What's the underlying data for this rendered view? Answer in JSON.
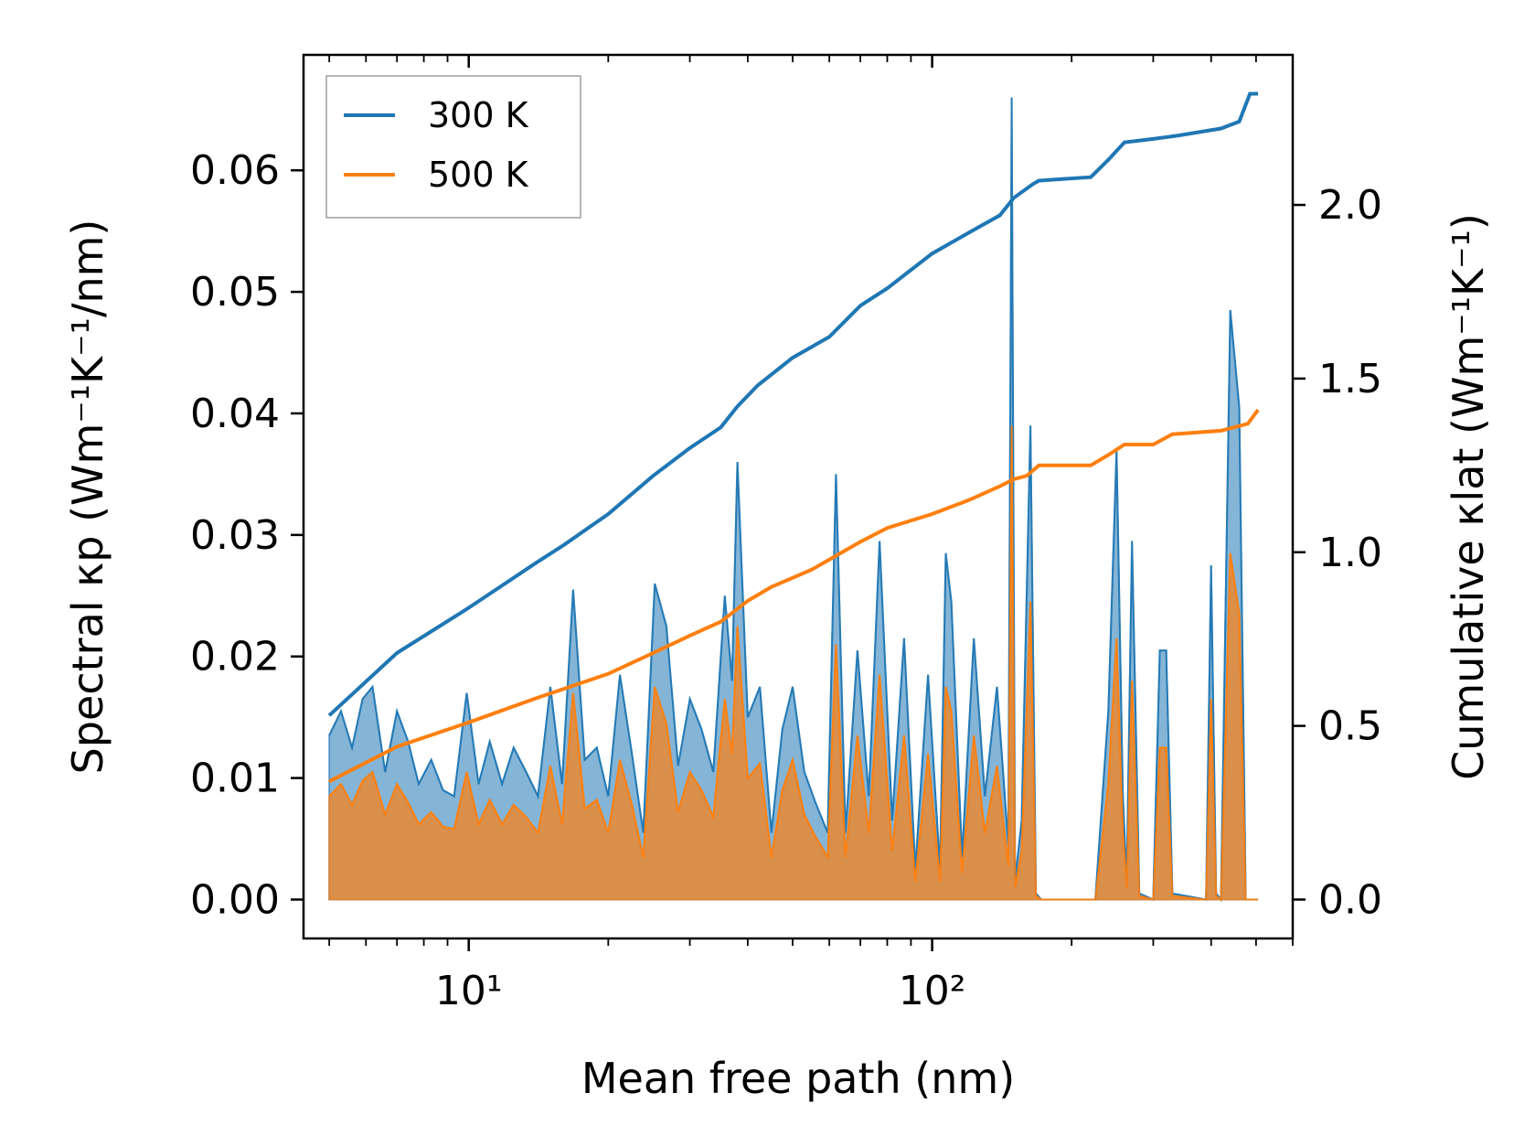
{
  "chart_data": {
    "type": "line",
    "title": "",
    "xlabel": "Mean free path (nm)",
    "ylabel": "Spectral κp (Wm⁻¹K⁻¹/nm)",
    "ylabel_right": "Cumulative κlat (Wm⁻¹K⁻¹)",
    "xscale": "log",
    "xlim": [
      4.4,
      600
    ],
    "ylim_left": [
      -0.0032,
      0.0695
    ],
    "ylim_right": [
      -0.112,
      2.432
    ],
    "x_ticks": [
      10,
      100
    ],
    "x_tick_labels": [
      "10¹",
      "10²"
    ],
    "y_left_ticks": [
      0.0,
      0.01,
      0.02,
      0.03,
      0.04,
      0.05,
      0.06
    ],
    "y_left_tick_labels": [
      "0.00",
      "0.01",
      "0.02",
      "0.03",
      "0.04",
      "0.05",
      "0.06"
    ],
    "y_right_ticks": [
      0.0,
      0.5,
      1.0,
      1.5,
      2.0
    ],
    "y_right_tick_labels": [
      "0.0",
      "0.5",
      "1.0",
      "1.5",
      "2.0"
    ],
    "legend": {
      "location": "upper-left",
      "entries": [
        "300 K",
        "500 K"
      ]
    },
    "series": [
      {
        "name": "300 K",
        "color": "#1f77b4",
        "spectral": {
          "x": [
            5,
            5.3,
            5.6,
            5.9,
            6.2,
            6.6,
            7.0,
            7.4,
            7.8,
            8.3,
            8.8,
            9.3,
            9.9,
            10.5,
            11.1,
            11.8,
            12.5,
            13.3,
            14.1,
            15.0,
            15.9,
            16.8,
            17.8,
            18.9,
            20.0,
            21.2,
            22.5,
            23.8,
            25.2,
            26.7,
            28.3,
            30.0,
            31.8,
            33.7,
            35.7,
            37.0,
            38.0,
            40.0,
            42.5,
            45.0,
            47.5,
            50.0,
            53.0,
            56.0,
            59.5,
            62.0,
            65.0,
            69.0,
            73.0,
            77.0,
            82.0,
            87.0,
            92.0,
            98.0,
            104.0,
            107.0,
            110.0,
            116.0,
            123.0,
            130.0,
            138.0,
            146.0,
            148.5,
            151.0,
            156.0,
            163.0,
            167.5,
            172.0,
            180.0,
            225.0,
            240.0,
            250.0,
            258.0,
            263.0,
            270.0,
            280.0,
            300.0,
            310.0,
            320.0,
            330.0,
            390.0,
            400.0,
            410.0,
            420.0,
            440.0,
            460.0,
            475.0,
            490.0,
            505.0
          ],
          "y": [
            0.0135,
            0.0155,
            0.0125,
            0.0165,
            0.0175,
            0.0105,
            0.0155,
            0.013,
            0.0095,
            0.0115,
            0.009,
            0.0085,
            0.017,
            0.0095,
            0.013,
            0.0095,
            0.0125,
            0.0105,
            0.0085,
            0.0175,
            0.0095,
            0.0255,
            0.0115,
            0.0125,
            0.0085,
            0.0185,
            0.012,
            0.0055,
            0.026,
            0.0225,
            0.011,
            0.0165,
            0.014,
            0.0105,
            0.025,
            0.018,
            0.036,
            0.015,
            0.0175,
            0.0055,
            0.014,
            0.0175,
            0.0105,
            0.008,
            0.0055,
            0.035,
            0.0055,
            0.0205,
            0.0085,
            0.0295,
            0.0065,
            0.0215,
            0.0025,
            0.0185,
            0.0025,
            0.0285,
            0.0245,
            0.0035,
            0.0215,
            0.0085,
            0.0175,
            0.0045,
            0.066,
            0.0015,
            0.0065,
            0.039,
            0.0005,
            0.0,
            0.0,
            0.0,
            0.0155,
            0.037,
            0.0085,
            0.0015,
            0.0295,
            0.0005,
            0.0,
            0.0205,
            0.0205,
            0.0005,
            0.0,
            0.0275,
            0.0005,
            0.0,
            0.0485,
            0.0405,
            0.0,
            0.0,
            0.0
          ]
        },
        "cumulative": {
          "x": [
            5,
            7,
            10,
            14,
            16,
            20,
            25,
            30,
            35,
            38,
            42,
            50,
            60,
            70,
            80,
            100,
            120,
            140,
            150,
            165,
            170,
            220,
            240,
            260,
            300,
            340,
            420,
            460,
            485,
            505
          ],
          "y": [
            0.53,
            0.71,
            0.84,
            0.97,
            1.02,
            1.11,
            1.22,
            1.3,
            1.36,
            1.42,
            1.48,
            1.56,
            1.62,
            1.71,
            1.76,
            1.86,
            1.92,
            1.97,
            2.02,
            2.06,
            2.07,
            2.08,
            2.13,
            2.18,
            2.19,
            2.2,
            2.22,
            2.24,
            2.32,
            2.32
          ]
        }
      },
      {
        "name": "500 K",
        "color": "#ff7f0e",
        "spectral": {
          "x": [
            5,
            5.3,
            5.6,
            5.9,
            6.2,
            6.6,
            7.0,
            7.4,
            7.8,
            8.3,
            8.8,
            9.3,
            9.9,
            10.5,
            11.1,
            11.8,
            12.5,
            13.3,
            14.1,
            15.0,
            15.9,
            16.8,
            17.8,
            18.9,
            20.0,
            21.2,
            22.5,
            23.8,
            25.2,
            26.7,
            28.3,
            30.0,
            31.8,
            33.7,
            35.7,
            37.0,
            38.0,
            40.0,
            42.5,
            45.0,
            47.5,
            50.0,
            53.0,
            56.0,
            59.5,
            62.0,
            65.0,
            69.0,
            73.0,
            77.0,
            82.0,
            87.0,
            92.0,
            98.0,
            104.0,
            107.0,
            110.0,
            116.0,
            123.0,
            130.0,
            138.0,
            146.0,
            148.5,
            151.0,
            156.0,
            163.0,
            167.5,
            172.0,
            180.0,
            225.0,
            240.0,
            250.0,
            258.0,
            263.0,
            270.0,
            280.0,
            300.0,
            310.0,
            320.0,
            330.0,
            390.0,
            400.0,
            410.0,
            420.0,
            440.0,
            460.0,
            475.0,
            490.0,
            505.0
          ],
          "y": [
            0.0085,
            0.0095,
            0.0078,
            0.0098,
            0.0105,
            0.007,
            0.0095,
            0.008,
            0.0062,
            0.0072,
            0.006,
            0.0058,
            0.0105,
            0.0062,
            0.0082,
            0.0062,
            0.0078,
            0.0068,
            0.0055,
            0.011,
            0.0062,
            0.017,
            0.0075,
            0.0082,
            0.0055,
            0.0115,
            0.0078,
            0.0035,
            0.0175,
            0.0145,
            0.0072,
            0.0105,
            0.009,
            0.0068,
            0.0165,
            0.012,
            0.0225,
            0.01,
            0.0112,
            0.0035,
            0.009,
            0.0115,
            0.007,
            0.0052,
            0.0035,
            0.021,
            0.0035,
            0.0135,
            0.0055,
            0.0185,
            0.004,
            0.0135,
            0.0015,
            0.012,
            0.0015,
            0.0175,
            0.0155,
            0.0022,
            0.0135,
            0.0055,
            0.011,
            0.0028,
            0.039,
            0.001,
            0.004,
            0.0245,
            0.0003,
            0.0,
            0.0,
            0.0,
            0.0095,
            0.0215,
            0.0055,
            0.001,
            0.018,
            0.0003,
            0.0,
            0.0125,
            0.0125,
            0.0003,
            0.0,
            0.0165,
            0.0003,
            0.0,
            0.0285,
            0.0235,
            0.0,
            0.0,
            0.0
          ]
        },
        "cumulative": {
          "x": [
            5,
            7,
            10,
            14,
            20,
            25,
            30,
            35,
            40,
            45,
            55,
            62,
            70,
            80,
            100,
            120,
            140,
            150,
            160,
            170,
            220,
            240,
            260,
            300,
            330,
            420,
            480,
            505
          ],
          "y": [
            0.34,
            0.44,
            0.51,
            0.58,
            0.65,
            0.71,
            0.76,
            0.8,
            0.86,
            0.9,
            0.95,
            0.99,
            1.03,
            1.07,
            1.11,
            1.15,
            1.19,
            1.21,
            1.22,
            1.25,
            1.25,
            1.28,
            1.31,
            1.31,
            1.34,
            1.35,
            1.37,
            1.41
          ]
        }
      }
    ]
  }
}
